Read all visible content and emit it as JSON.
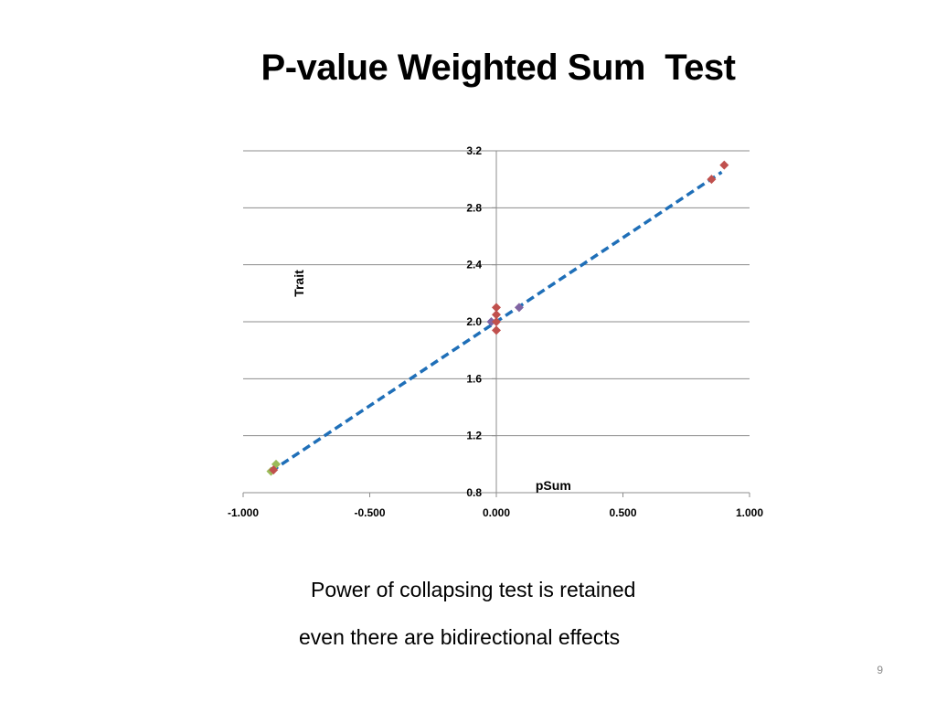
{
  "slide": {
    "title": "P-value Weighted Sum  Test",
    "captions": [
      "Power of collapsing test is retained",
      "even there are bidirectional effects"
    ],
    "page_number": "9"
  },
  "colors": {
    "point_red": "#c0504d",
    "point_green": "#9bbb59",
    "point_purple": "#8064a2",
    "trendline": "#1f6fb8",
    "gridline": "#8c8c8c"
  },
  "chart_data": {
    "type": "scatter",
    "title": "",
    "xlabel": "pSum",
    "ylabel": "Trait",
    "xlim": [
      -1.0,
      1.0
    ],
    "ylim": [
      0.8,
      3.2
    ],
    "xticks": [
      "-1.000",
      "-0.500",
      "0.000",
      "0.500",
      "1.000"
    ],
    "yticks": [
      "0.8",
      "1.2",
      "1.6",
      "2.0",
      "2.4",
      "2.8",
      "3.2"
    ],
    "grid": "horizontal",
    "legend": "none",
    "points": [
      {
        "x": -0.89,
        "y": 0.95,
        "color": "#9bbb59"
      },
      {
        "x": -0.87,
        "y": 1.0,
        "color": "#9bbb59"
      },
      {
        "x": -0.88,
        "y": 0.96,
        "color": "#c0504d"
      },
      {
        "x": -0.02,
        "y": 2.0,
        "color": "#8064a2"
      },
      {
        "x": 0.0,
        "y": 1.94,
        "color": "#c0504d"
      },
      {
        "x": 0.0,
        "y": 2.0,
        "color": "#c0504d"
      },
      {
        "x": 0.0,
        "y": 2.05,
        "color": "#c0504d"
      },
      {
        "x": 0.0,
        "y": 2.1,
        "color": "#c0504d"
      },
      {
        "x": 0.09,
        "y": 2.1,
        "color": "#8064a2"
      },
      {
        "x": 0.85,
        "y": 3.0,
        "color": "#c0504d"
      },
      {
        "x": 0.9,
        "y": 3.1,
        "color": "#c0504d"
      }
    ],
    "trendline": {
      "type": "linear",
      "x": [
        -0.89,
        0.89
      ],
      "y": [
        0.95,
        3.05
      ],
      "style": "dashed"
    }
  }
}
